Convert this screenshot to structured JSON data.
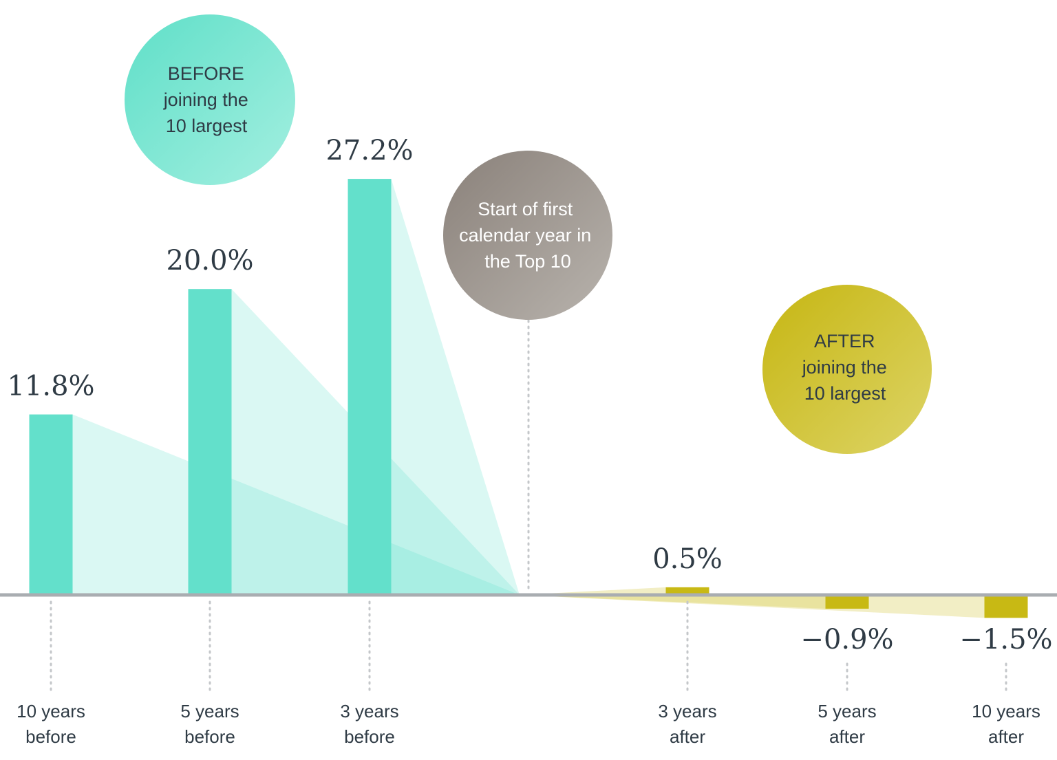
{
  "chart_data": {
    "type": "bar",
    "categories": [
      {
        "line1": "10 years",
        "line2": "before"
      },
      {
        "line1": "5 years",
        "line2": "before"
      },
      {
        "line1": "3 years",
        "line2": "before"
      },
      {
        "line1": "3 years",
        "line2": "after"
      },
      {
        "line1": "5 years",
        "line2": "after"
      },
      {
        "line1": "10 years",
        "line2": "after"
      }
    ],
    "values": [
      11.8,
      20.0,
      27.2,
      0.5,
      -0.9,
      -1.5
    ],
    "value_labels": [
      "11.8%",
      "20.0%",
      "27.2%",
      "0.5%",
      "−0.9%",
      "−1.5%"
    ],
    "phases": [
      "before",
      "before",
      "before",
      "after",
      "after",
      "after"
    ],
    "ylim": [
      -2,
      30
    ],
    "grid": false,
    "annotations": {
      "before": {
        "lines": [
          "BEFORE",
          "joining the",
          "10 largest"
        ]
      },
      "start": {
        "lines": [
          "Start of first",
          "calendar year in",
          "the Top 10"
        ]
      },
      "after": {
        "lines": [
          "AFTER",
          "joining the",
          "10 largest"
        ]
      }
    }
  },
  "colors": {
    "before": "#63e0cb",
    "before_fan": "#63e0cb",
    "after": "#c8b914",
    "after_fan": "#d9ce5a",
    "baseline": "#a9adb1",
    "guide": "#c4c7ca",
    "text": "#2f3b45",
    "start_bubble_from": "#8c837c",
    "start_bubble_to": "#b5b0aa"
  }
}
